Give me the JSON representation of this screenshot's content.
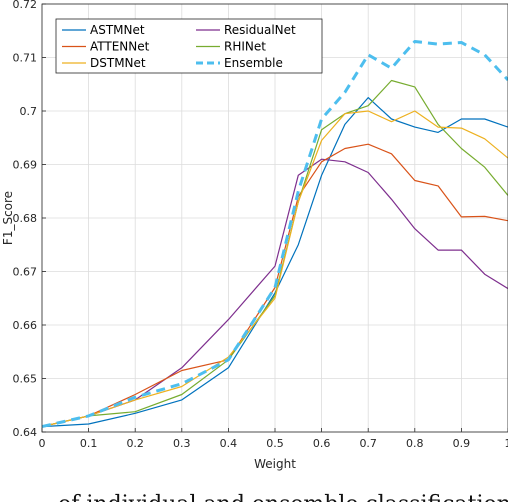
{
  "chart_data": {
    "type": "line",
    "xlabel": "Weight",
    "ylabel": "F1_Score",
    "xlim": [
      0,
      1
    ],
    "ylim": [
      0.64,
      0.72
    ],
    "xticks": [
      "0",
      "0.1",
      "0.2",
      "0.3",
      "0.4",
      "0.5",
      "0.6",
      "0.7",
      "0.8",
      "0.9",
      "1"
    ],
    "yticks": [
      "0.64",
      "0.65",
      "0.66",
      "0.67",
      "0.68",
      "0.69",
      "0.7",
      "0.71",
      "0.72"
    ],
    "grid": true,
    "legend_position": "top-left",
    "x": [
      0,
      0.1,
      0.2,
      0.3,
      0.4,
      0.5,
      0.55,
      0.6,
      0.65,
      0.7,
      0.75,
      0.8,
      0.85,
      0.9,
      0.95,
      1
    ],
    "series": [
      {
        "name": "ASTMNet",
        "color": "#0072BD",
        "dashed": false,
        "values": [
          0.641,
          0.6415,
          0.6435,
          0.646,
          0.652,
          0.666,
          0.675,
          0.688,
          0.6975,
          0.7025,
          0.6985,
          0.697,
          0.696,
          0.6985,
          0.6985,
          0.697
        ]
      },
      {
        "name": "ResidualNet",
        "color": "#7E2F8E",
        "dashed": false,
        "values": [
          0.641,
          0.643,
          0.646,
          0.652,
          0.661,
          0.671,
          0.688,
          0.691,
          0.6905,
          0.6885,
          0.6835,
          0.678,
          0.674,
          0.674,
          0.6695,
          0.6668
        ]
      },
      {
        "name": "ATTENNet",
        "color": "#D95319",
        "dashed": false,
        "values": [
          0.641,
          0.643,
          0.647,
          0.6515,
          0.6535,
          0.667,
          0.684,
          0.6905,
          0.693,
          0.6938,
          0.692,
          0.687,
          0.686,
          0.6802,
          0.6803,
          0.6795
        ]
      },
      {
        "name": "RHINet",
        "color": "#77AC30",
        "dashed": false,
        "values": [
          0.641,
          0.643,
          0.6438,
          0.647,
          0.6535,
          0.6655,
          0.683,
          0.6965,
          0.6995,
          0.701,
          0.7057,
          0.7045,
          0.6975,
          0.693,
          0.6895,
          0.6842
        ]
      },
      {
        "name": "DSTMNet",
        "color": "#EDB120",
        "dashed": false,
        "values": [
          0.641,
          0.643,
          0.646,
          0.6485,
          0.654,
          0.665,
          0.683,
          0.6945,
          0.6995,
          0.7,
          0.698,
          0.7,
          0.697,
          0.6968,
          0.6948,
          0.6912
        ]
      },
      {
        "name": "Ensemble",
        "color": "#4DBEEE",
        "dashed": true,
        "values": [
          0.641,
          0.643,
          0.6465,
          0.649,
          0.6535,
          0.667,
          0.685,
          0.6985,
          0.7035,
          0.7105,
          0.708,
          0.713,
          0.7125,
          0.7128,
          0.7105,
          0.7058
        ]
      }
    ]
  },
  "caption_fragment": "of individual and ensemble classification"
}
